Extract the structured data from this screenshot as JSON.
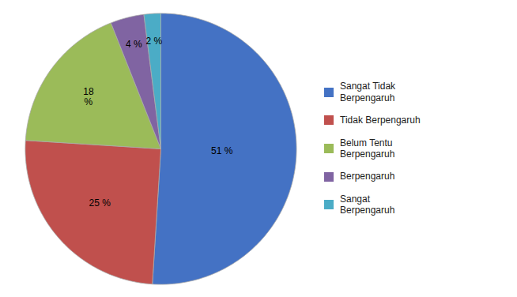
{
  "chart_data": {
    "type": "pie",
    "categories": [
      "Sangat Tidak\nBerpengaruh",
      "Tidak Berpengaruh",
      "Belum Tentu\nBerpengaruh",
      "Berpengaruh",
      "Sangat\nBerpengaruh"
    ],
    "values": [
      51,
      25,
      18,
      4,
      2
    ],
    "value_labels": [
      "51 %",
      "25 %",
      "18\n%",
      "4 %",
      "2 %"
    ],
    "colors": [
      "#4472C4",
      "#C0504D",
      "#9BBB59",
      "#8064A2",
      "#4BACC6"
    ],
    "data_labels": true,
    "legend": "right"
  }
}
